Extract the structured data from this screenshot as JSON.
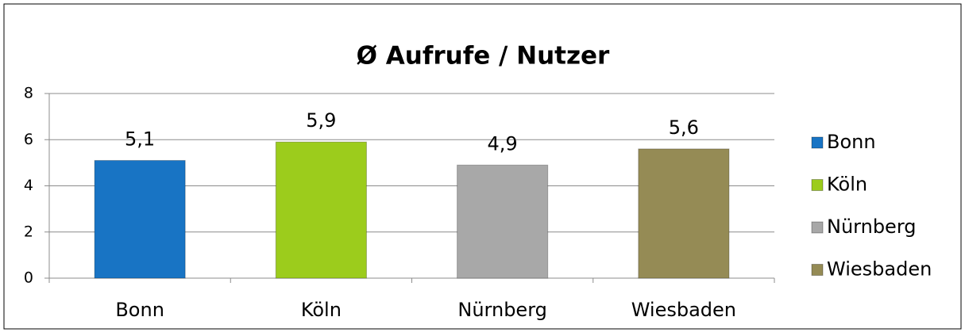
{
  "chart_data": {
    "type": "bar",
    "title": "Ø Aufrufe / Nutzer",
    "categories": [
      "Bonn",
      "Köln",
      "Nürnberg",
      "Wiesbaden"
    ],
    "values": [
      5.1,
      5.9,
      4.9,
      5.6
    ],
    "value_labels": [
      "5,1",
      "5,9",
      "4,9",
      "5,6"
    ],
    "colors": [
      "#1874c4",
      "#9ccc1c",
      "#a8a8a8",
      "#958b55"
    ],
    "ylim": [
      0,
      8
    ],
    "yticks": [
      0,
      2,
      4,
      6,
      8
    ],
    "grid": true,
    "legend": "right"
  }
}
